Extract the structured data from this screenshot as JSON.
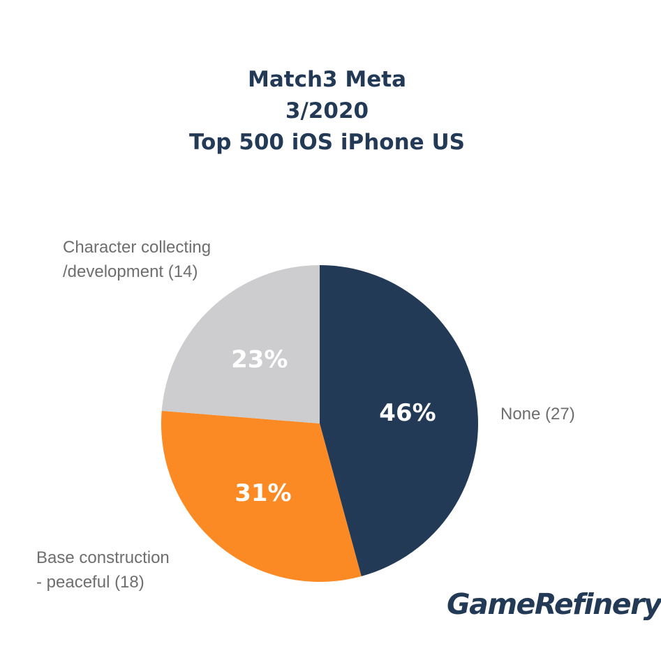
{
  "title": {
    "line1": "Match3 Meta",
    "line2": "3/2020",
    "line3": "Top 500 iOS iPhone US"
  },
  "chart_data": {
    "type": "pie",
    "title": "Match3 Meta 3/2020 Top 500 iOS iPhone US",
    "slices": [
      {
        "label_line1": "None (27)",
        "label_line2": "",
        "count": 27,
        "percent": 46,
        "percent_label": "46%",
        "color": "#233a57"
      },
      {
        "label_line1": "Base construction",
        "label_line2": "- peaceful (18)",
        "count": 18,
        "percent": 31,
        "percent_label": "31%",
        "color": "#fb8a24"
      },
      {
        "label_line1": "Character collecting",
        "label_line2": "/development (14)",
        "count": 14,
        "percent": 23,
        "percent_label": "23%",
        "color": "#cdcdcf"
      }
    ],
    "start_angle_deg": 0,
    "direction": "clockwise"
  },
  "logo": {
    "text": "GameRefinery",
    "color": "#233a57"
  }
}
